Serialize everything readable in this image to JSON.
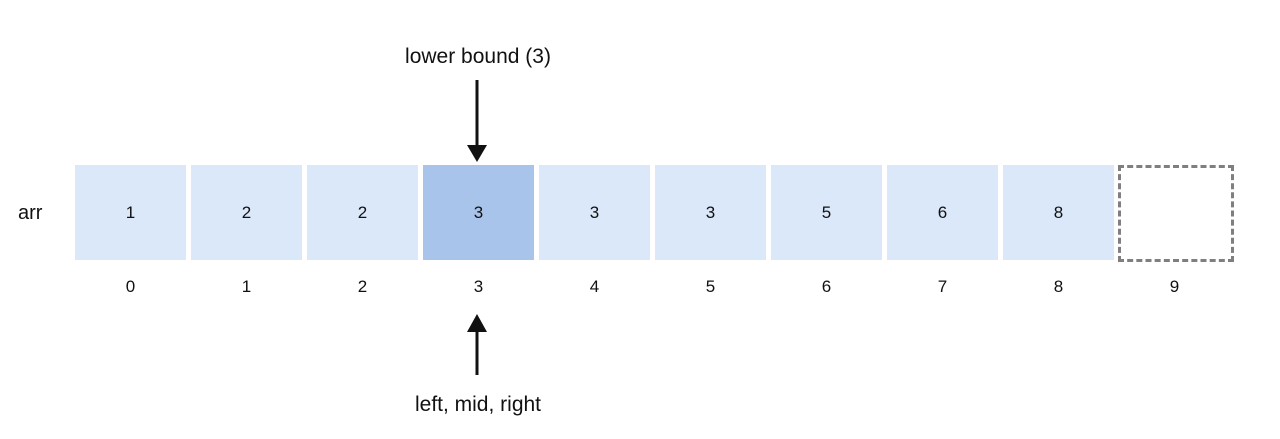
{
  "top_label": "lower bound (3)",
  "bottom_label": "left, mid, right",
  "array_name": "arr",
  "cells": [
    "1",
    "2",
    "2",
    "3",
    "3",
    "3",
    "5",
    "6",
    "8",
    ""
  ],
  "indices": [
    "0",
    "1",
    "2",
    "3",
    "4",
    "5",
    "6",
    "7",
    "8",
    "9"
  ],
  "highlight_index": 3,
  "colors": {
    "cell_fill": "#dbe8f9",
    "highlight_fill": "#a9c4eb",
    "empty_border": "#7f7f7f"
  }
}
